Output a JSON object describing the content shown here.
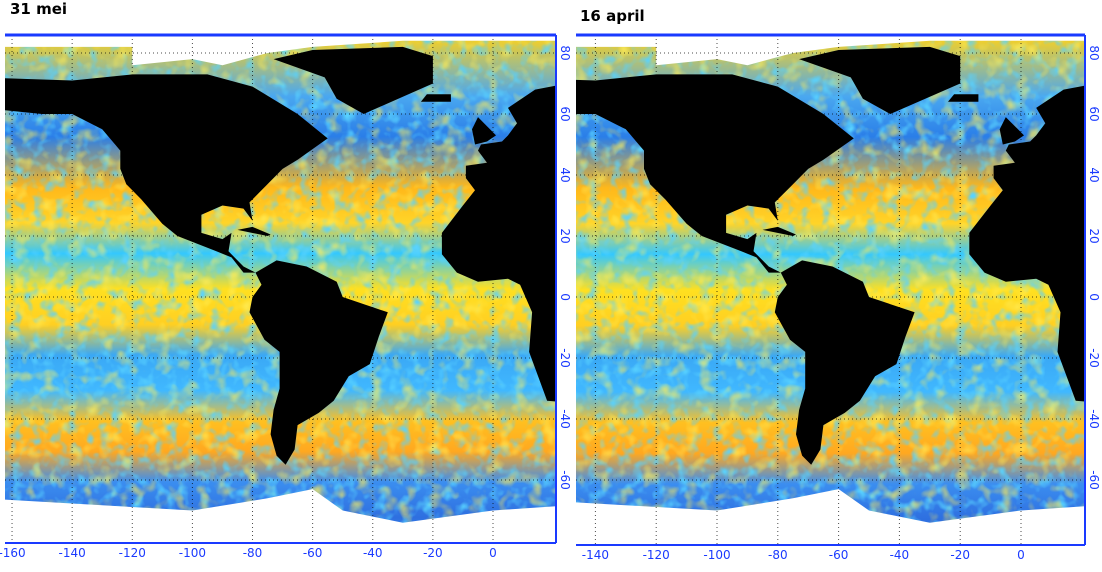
{
  "maps": [
    {
      "title": "31 mei",
      "lon_ticks": [
        -160,
        -140,
        -120,
        -100,
        -80,
        -60,
        -40,
        -20,
        0
      ],
      "lat_ticks": [
        80,
        60,
        40,
        20,
        0,
        -20,
        -40,
        -60
      ]
    },
    {
      "title": "16 april",
      "lon_ticks": [
        -140,
        -120,
        -100,
        -80,
        -60,
        -40,
        -20,
        0
      ],
      "lat_ticks": [
        80,
        60,
        40,
        20,
        0,
        -20,
        -40,
        -60
      ]
    }
  ]
}
